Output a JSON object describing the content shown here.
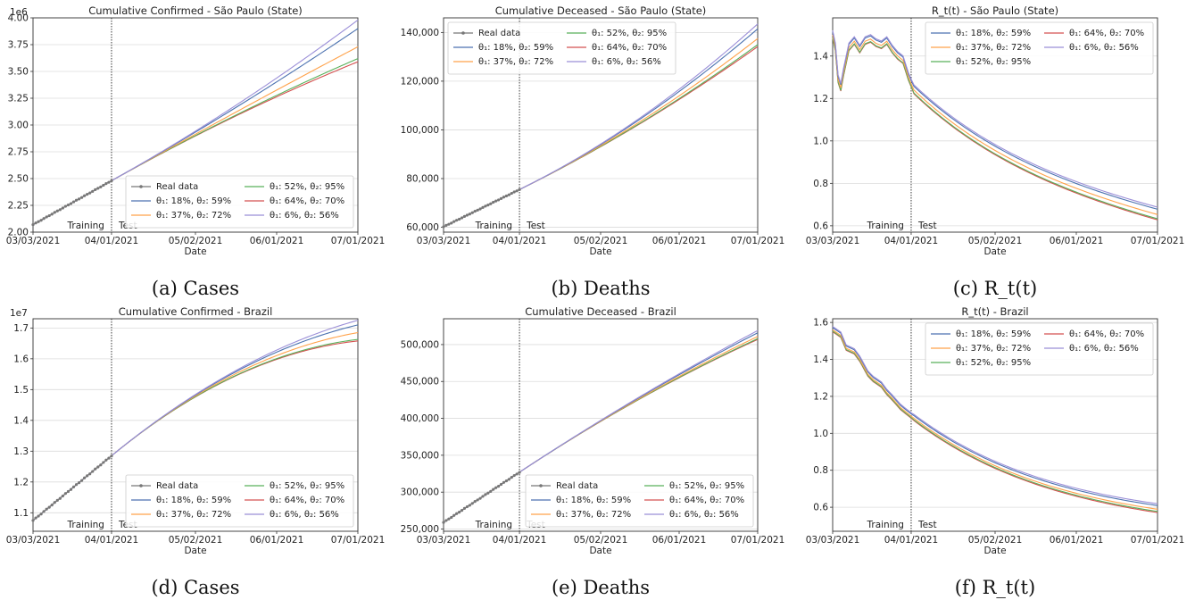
{
  "x_ticks": [
    "03/03/2021",
    "04/01/2021",
    "05/02/2021",
    "06/01/2021",
    "07/01/2021"
  ],
  "xlabel": "Date",
  "training_label": "Training",
  "test_label": "Test",
  "colors": {
    "real": "#777777",
    "s1": "#4c72b0",
    "s2": "#ffa24a",
    "s3": "#59b15a",
    "s4": "#d45150",
    "s5": "#9b8fd8"
  },
  "legend_labels": {
    "real": "Real data",
    "s1": "θ₁: 18%, θ₂: 59%",
    "s2": "θ₁: 37%, θ₂: 72%",
    "s3": "θ₁: 52%, θ₂: 95%",
    "s4": "θ₁: 64%, θ₂: 70%",
    "s5": "θ₁: 6%, θ₂: 56%"
  },
  "chart_data": [
    {
      "type": "line",
      "title": "Cumulative Confirmed - São Paulo (State)",
      "caption": "(a) Cases",
      "multiplier": "1e6",
      "ylim": [
        2.0,
        4.0
      ],
      "yticks": [
        "2.00",
        "2.25",
        "2.50",
        "2.75",
        "3.00",
        "3.25",
        "3.50",
        "3.75",
        "4.00"
      ],
      "legend_position": "bottom-right",
      "real_data": {
        "x": [
          "03/03/2021",
          "04/01/2021"
        ],
        "y": [
          2.07,
          2.48
        ]
      },
      "series": [
        {
          "key": "s1",
          "y_end": 3.9
        },
        {
          "key": "s2",
          "y_end": 3.73
        },
        {
          "key": "s3",
          "y_end": 3.62
        },
        {
          "key": "s4",
          "y_end": 3.59
        },
        {
          "key": "s5",
          "y_end": 3.98
        }
      ]
    },
    {
      "type": "line",
      "title": "Cumulative Deceased - São Paulo (State)",
      "caption": "(b) Deaths",
      "ylim": [
        58000,
        146000
      ],
      "yticks": [
        "60,000",
        "80,000",
        "100,000",
        "120,000",
        "140,000"
      ],
      "legend_position": "top-left",
      "real_data": {
        "x": [
          "03/03/2021",
          "04/01/2021"
        ],
        "y": [
          60200,
          75500
        ]
      },
      "series": [
        {
          "key": "s1",
          "y_end": 141500
        },
        {
          "key": "s2",
          "y_end": 137500
        },
        {
          "key": "s3",
          "y_end": 135000
        },
        {
          "key": "s4",
          "y_end": 134200
        },
        {
          "key": "s5",
          "y_end": 143500
        }
      ]
    },
    {
      "type": "line",
      "title": "R_t(t) - São Paulo (State)",
      "caption": "(c) R_t(t)",
      "ylim": [
        0.57,
        1.58
      ],
      "yticks": [
        "0.6",
        "0.8",
        "1.0",
        "1.2",
        "1.4"
      ],
      "legend_position": "top-right",
      "series": [
        {
          "key": "s1",
          "offset": 0.025
        },
        {
          "key": "s2",
          "offset": 0.0
        },
        {
          "key": "s3",
          "offset": -0.02
        },
        {
          "key": "s4",
          "offset": -0.025
        },
        {
          "key": "s5",
          "offset": 0.035
        }
      ]
    },
    {
      "type": "line",
      "title": "Cumulative Confirmed - Brazil",
      "caption": "(d) Cases",
      "multiplier": "1e7",
      "ylim": [
        1.04,
        1.73
      ],
      "yticks": [
        "1.1",
        "1.2",
        "1.3",
        "1.4",
        "1.5",
        "1.6",
        "1.7"
      ],
      "legend_position": "bottom-right",
      "real_data": {
        "x": [
          "03/03/2021",
          "04/01/2021"
        ],
        "y": [
          1.075,
          1.285
        ]
      },
      "series": [
        {
          "key": "s1",
          "y_end": 1.71
        },
        {
          "key": "s2",
          "y_end": 1.685
        },
        {
          "key": "s3",
          "y_end": 1.663
        },
        {
          "key": "s4",
          "y_end": 1.658
        },
        {
          "key": "s5",
          "y_end": 1.725
        }
      ]
    },
    {
      "type": "line",
      "title": "Cumulative Deceased - Brazil",
      "caption": "(e) Deaths",
      "ylim": [
        247000,
        535000
      ],
      "yticks": [
        "250,000",
        "300,000",
        "350,000",
        "400,000",
        "450,000",
        "500,000"
      ],
      "legend_position": "bottom-right",
      "real_data": {
        "x": [
          "03/03/2021",
          "04/01/2021"
        ],
        "y": [
          259000,
          327000
        ]
      },
      "series": [
        {
          "key": "s1",
          "y_end": 516000
        },
        {
          "key": "s2",
          "y_end": 511000
        },
        {
          "key": "s3",
          "y_end": 508000
        },
        {
          "key": "s4",
          "y_end": 507000
        },
        {
          "key": "s5",
          "y_end": 519000
        }
      ]
    },
    {
      "type": "line",
      "title": "R_t(t) - Brazil",
      "caption": "(f) R_t(t)",
      "ylim": [
        0.47,
        1.62
      ],
      "yticks": [
        "0.6",
        "0.8",
        "1.0",
        "1.2",
        "1.4",
        "1.6"
      ],
      "legend_position": "top-right",
      "series": [
        {
          "key": "s1",
          "offset": 0.02
        },
        {
          "key": "s2",
          "offset": 0.0
        },
        {
          "key": "s3",
          "offset": -0.012
        },
        {
          "key": "s4",
          "offset": -0.018
        },
        {
          "key": "s5",
          "offset": 0.03
        }
      ]
    }
  ]
}
